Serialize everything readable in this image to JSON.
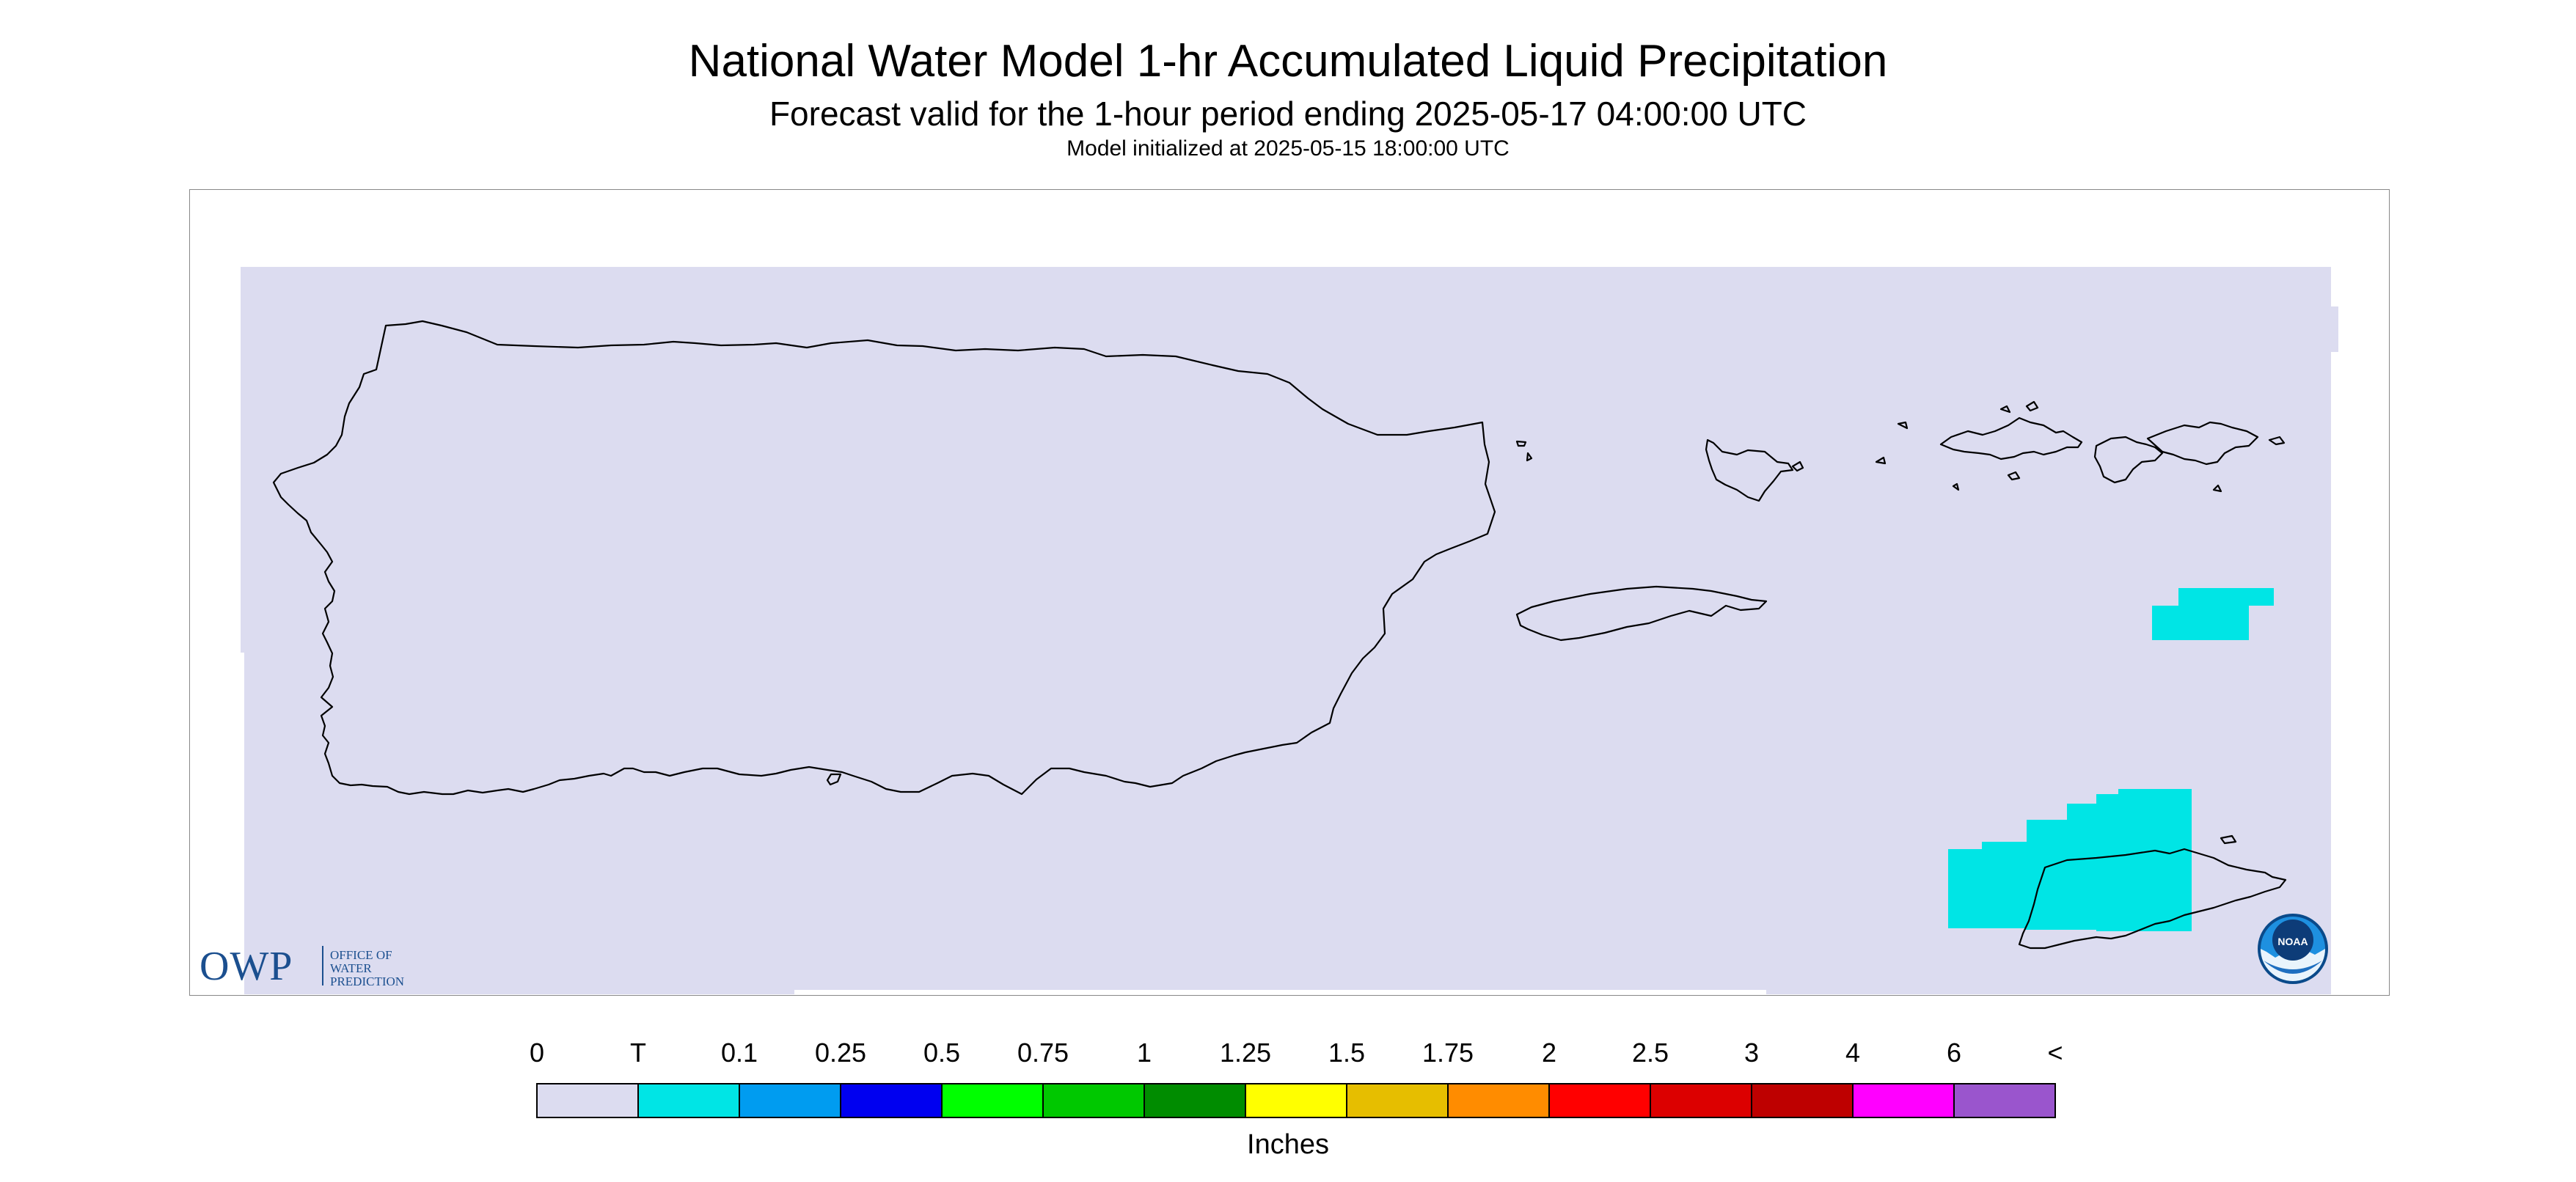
{
  "header": {
    "title": "National Water Model 1-hr Accumulated Liquid Precipitation",
    "subtitle": "Forecast valid for the 1-hour period ending 2025-05-17 04:00:00 UTC",
    "init": "Model initialized at 2025-05-15 18:00:00 UTC"
  },
  "legend": {
    "units": "Inches",
    "labels": [
      "0",
      "T",
      "0.1",
      "0.25",
      "0.5",
      "0.75",
      "1",
      "1.25",
      "1.5",
      "1.75",
      "2",
      "2.5",
      "3",
      "4",
      "6",
      "<"
    ],
    "colors": [
      "#dcdcf0",
      "#00e5e5",
      "#009cf0",
      "#0000f0",
      "#00ff00",
      "#00c800",
      "#008c00",
      "#ffff00",
      "#e6be00",
      "#ff8c00",
      "#ff0000",
      "#dc0000",
      "#be0000",
      "#ff00ff",
      "#9a55cd"
    ]
  },
  "logos": {
    "owp_mark": "OWP",
    "owp_text": [
      "OFFICE OF",
      "WATER",
      "PREDICTION"
    ],
    "noaa_text": "NOAA"
  },
  "icons": {
    "noaa": "noaa-logo-icon",
    "owp": "owp-logo-icon"
  }
}
